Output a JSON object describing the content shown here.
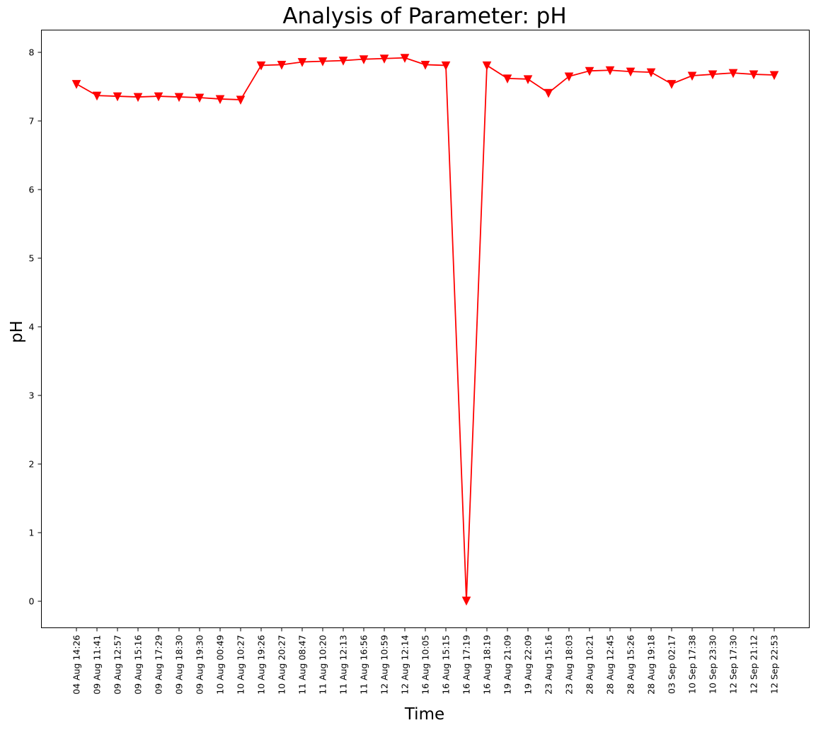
{
  "chart_data": {
    "type": "line",
    "title": "Analysis of Parameter: pH",
    "xlabel": "Time",
    "ylabel": "pH",
    "ylim": [
      -0.4,
      8.3
    ],
    "yticks": [
      0,
      1,
      2,
      3,
      4,
      5,
      6,
      7,
      8
    ],
    "grid": false,
    "legend": "none",
    "categories": [
      "04 Aug 14:26",
      "09 Aug 11:41",
      "09 Aug 12:57",
      "09 Aug 15:16",
      "09 Aug 17:29",
      "09 Aug 18:30",
      "09 Aug 19:30",
      "10 Aug 00:49",
      "10 Aug 10:27",
      "10 Aug 19:26",
      "10 Aug 20:27",
      "11 Aug 08:47",
      "11 Aug 10:20",
      "11 Aug 12:13",
      "11 Aug 16:56",
      "12 Aug 10:59",
      "12 Aug 12:14",
      "16 Aug 10:05",
      "16 Aug 15:15",
      "16 Aug 17:19",
      "16 Aug 18:19",
      "19 Aug 21:09",
      "19 Aug 22:09",
      "23 Aug 15:16",
      "23 Aug 18:03",
      "28 Aug 10:21",
      "28 Aug 12:45",
      "28 Aug 15:26",
      "28 Aug 19:18",
      "03 Sep 02:17",
      "10 Sep 17:38",
      "10 Sep 23:30",
      "12 Sep 17:30",
      "12 Sep 21:12",
      "12 Sep 22:53"
    ],
    "series": [
      {
        "color": "#ff0000",
        "marker": "triangle-down",
        "values": [
          7.54,
          7.37,
          7.36,
          7.35,
          7.36,
          7.35,
          7.34,
          7.32,
          7.31,
          7.81,
          7.82,
          7.86,
          7.87,
          7.88,
          7.9,
          7.91,
          7.92,
          7.82,
          7.81,
          0.01,
          7.81,
          7.62,
          7.61,
          7.41,
          7.65,
          7.73,
          7.74,
          7.72,
          7.71,
          7.54,
          7.66,
          7.68,
          7.7,
          7.68,
          7.67
        ]
      }
    ]
  }
}
